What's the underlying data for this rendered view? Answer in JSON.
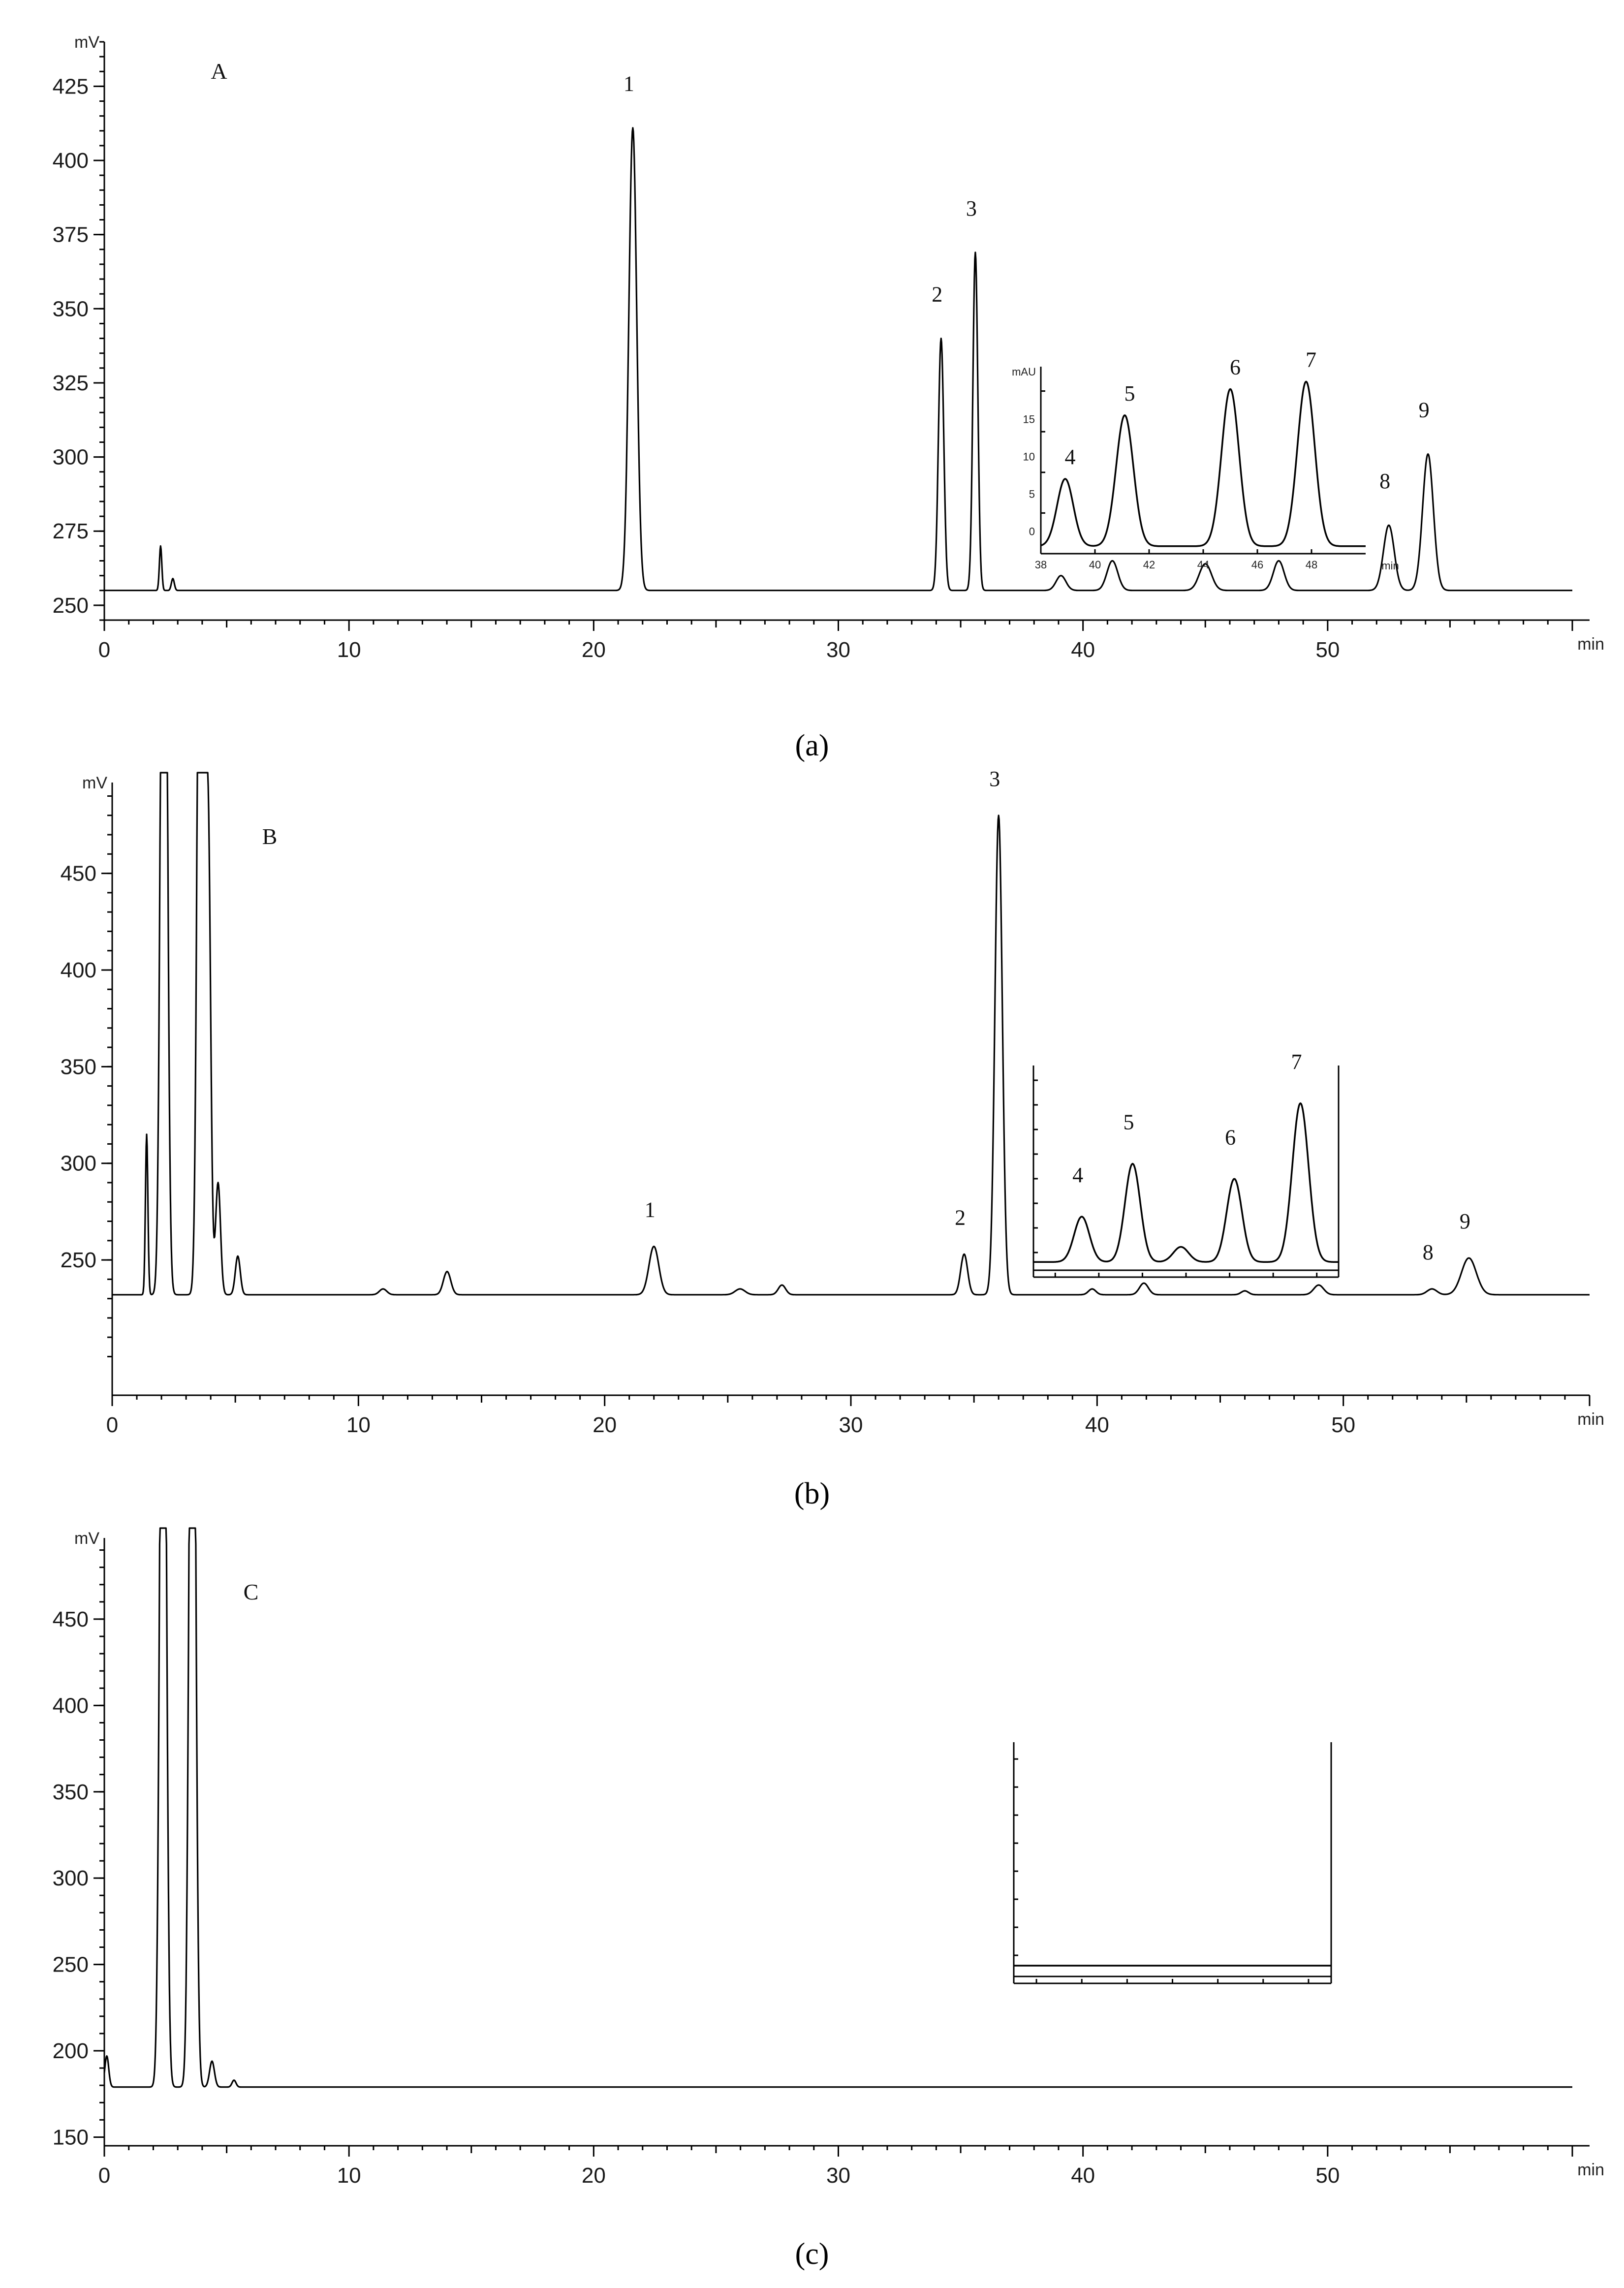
{
  "chart_data": [
    {
      "type": "line",
      "panel_label": "A",
      "caption": "(a)",
      "ylabel": "mV",
      "xlabel": "min",
      "xlim": [
        0,
        60
      ],
      "ylim": [
        245,
        440
      ],
      "x_ticks": [
        0,
        10,
        20,
        30,
        40,
        50
      ],
      "y_ticks": [
        250,
        275,
        300,
        325,
        350,
        375,
        400,
        425
      ],
      "baseline": 255,
      "peaks": [
        {
          "label": "",
          "x": 2.3,
          "y": 270,
          "w": 0.05
        },
        {
          "label": "",
          "x": 2.8,
          "y": 259,
          "w": 0.06
        },
        {
          "label": "1",
          "x": 21.6,
          "y": 411,
          "w": 0.16
        },
        {
          "label": "2",
          "x": 34.2,
          "y": 340,
          "w": 0.11
        },
        {
          "label": "3",
          "x": 35.6,
          "y": 369,
          "w": 0.1
        },
        {
          "label": "",
          "x": 39.1,
          "y": 260,
          "w": 0.2
        },
        {
          "label": "",
          "x": 41.2,
          "y": 265,
          "w": 0.22
        },
        {
          "label": "",
          "x": 45.0,
          "y": 264,
          "w": 0.25
        },
        {
          "label": "",
          "x": 48.0,
          "y": 265,
          "w": 0.22
        },
        {
          "label": "8",
          "x": 52.5,
          "y": 277,
          "w": 0.22
        },
        {
          "label": "9",
          "x": 54.1,
          "y": 301,
          "w": 0.22
        }
      ],
      "inset": {
        "ylabel": "mAU",
        "xlabel": "min",
        "x_ticks": [
          "38",
          "40",
          "42",
          "44",
          "46",
          "48"
        ],
        "y_ticks": [
          "0",
          "5",
          "10",
          "15"
        ],
        "xlim": [
          38,
          50
        ],
        "ylim": [
          -3,
          22
        ],
        "baseline": -2,
        "peaks": [
          {
            "label": "4",
            "x": 38.9,
            "y": 7,
            "w": 0.3
          },
          {
            "label": "5",
            "x": 41.1,
            "y": 15.5,
            "w": 0.32
          },
          {
            "label": "6",
            "x": 45.0,
            "y": 19,
            "w": 0.32
          },
          {
            "label": "7",
            "x": 47.8,
            "y": 20,
            "w": 0.32
          }
        ]
      }
    },
    {
      "type": "line",
      "panel_label": "B",
      "caption": "(b)",
      "ylabel": "mV",
      "xlabel": "min",
      "xlim": [
        0,
        60
      ],
      "ylim": [
        180,
        497
      ],
      "x_ticks": [
        0,
        10,
        20,
        30,
        40,
        50
      ],
      "y_ticks": [
        250,
        300,
        350,
        400,
        450
      ],
      "baseline": 232,
      "peaks": [
        {
          "label": "",
          "x": 1.4,
          "y": 315,
          "w": 0.05
        },
        {
          "label": "",
          "x": 2.1,
          "y": 800,
          "w": 0.12
        },
        {
          "label": "",
          "x": 3.6,
          "y": 800,
          "w": 0.12
        },
        {
          "label": "",
          "x": 3.9,
          "y": 470,
          "w": 0.1
        },
        {
          "label": "",
          "x": 4.3,
          "y": 290,
          "w": 0.1
        },
        {
          "label": "",
          "x": 5.1,
          "y": 252,
          "w": 0.1
        },
        {
          "label": "",
          "x": 11.0,
          "y": 235,
          "w": 0.15
        },
        {
          "label": "",
          "x": 13.6,
          "y": 244,
          "w": 0.15
        },
        {
          "label": "1",
          "x": 22.0,
          "y": 257,
          "w": 0.2
        },
        {
          "label": "",
          "x": 25.5,
          "y": 235,
          "w": 0.2
        },
        {
          "label": "",
          "x": 27.2,
          "y": 237,
          "w": 0.15
        },
        {
          "label": "2",
          "x": 34.6,
          "y": 253,
          "w": 0.14
        },
        {
          "label": "3",
          "x": 36.0,
          "y": 480,
          "w": 0.15
        },
        {
          "label": "",
          "x": 39.8,
          "y": 235,
          "w": 0.15
        },
        {
          "label": "",
          "x": 41.9,
          "y": 238,
          "w": 0.18
        },
        {
          "label": "",
          "x": 46.0,
          "y": 234,
          "w": 0.15
        },
        {
          "label": "",
          "x": 49.0,
          "y": 237,
          "w": 0.2
        },
        {
          "label": "8",
          "x": 53.6,
          "y": 235,
          "w": 0.2
        },
        {
          "label": "9",
          "x": 55.1,
          "y": 251,
          "w": 0.3
        }
      ],
      "inset": {
        "ylabel": "",
        "xlabel": "",
        "x_ticks": [
          "",
          "",
          "",
          "",
          "",
          "",
          ""
        ],
        "y_ticks": [
          "",
          "",
          "",
          "",
          "",
          "",
          "",
          ""
        ],
        "xlim": [
          38,
          50
        ],
        "ylim": [
          0,
          14
        ],
        "baseline": 1,
        "peaks": [
          {
            "label": "4",
            "x": 39.9,
            "y": 4,
            "w": 0.3
          },
          {
            "label": "5",
            "x": 41.9,
            "y": 7.5,
            "w": 0.3
          },
          {
            "label": "",
            "x": 43.8,
            "y": 2,
            "w": 0.3
          },
          {
            "label": "6",
            "x": 45.9,
            "y": 6.5,
            "w": 0.3
          },
          {
            "label": "7",
            "x": 48.5,
            "y": 11.5,
            "w": 0.32
          }
        ]
      }
    },
    {
      "type": "line",
      "panel_label": "C",
      "caption": "(c)",
      "ylabel": "mV",
      "xlabel": "min",
      "xlim": [
        0,
        60
      ],
      "ylim": [
        145,
        497
      ],
      "x_ticks": [
        0,
        10,
        20,
        30,
        40,
        50
      ],
      "y_ticks": [
        150,
        200,
        250,
        300,
        350,
        400,
        450
      ],
      "baseline": 179,
      "peaks": [
        {
          "label": "",
          "x": 0.1,
          "y": 197,
          "w": 0.08
        },
        {
          "label": "",
          "x": 2.4,
          "y": 800,
          "w": 0.12
        },
        {
          "label": "",
          "x": 3.6,
          "y": 800,
          "w": 0.12
        },
        {
          "label": "",
          "x": 4.4,
          "y": 194,
          "w": 0.1
        },
        {
          "label": "",
          "x": 5.3,
          "y": 183,
          "w": 0.08
        }
      ],
      "inset": {
        "ylabel": "",
        "xlabel": "",
        "x_ticks": [
          "",
          "",
          "",
          "",
          "",
          "",
          ""
        ],
        "y_ticks": [
          "",
          "",
          "",
          "",
          "",
          "",
          "",
          ""
        ],
        "xlim": [
          38,
          50
        ],
        "ylim": [
          0,
          14
        ],
        "baseline": 1,
        "peaks": []
      }
    }
  ]
}
